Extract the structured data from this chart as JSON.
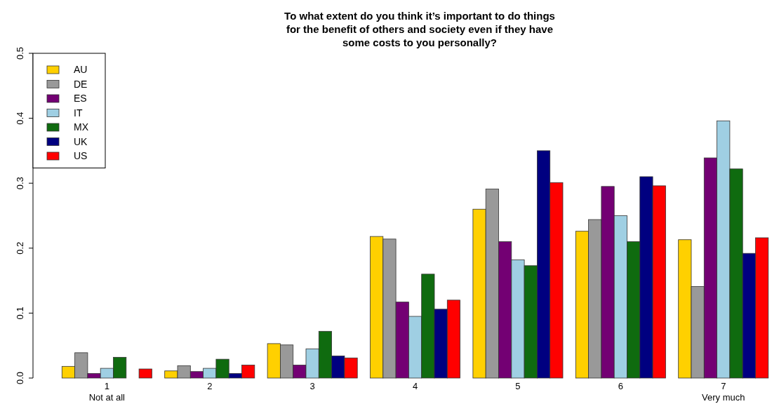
{
  "chart_data": {
    "type": "bar",
    "title": "To what extent do you think it’s important to do things\nfor the benefit of others and society even if they have\nsome costs to you personally?",
    "categories": [
      "1\nNot at all",
      "2",
      "3",
      "4",
      "5",
      "6",
      "7\nVery much"
    ],
    "series": [
      {
        "name": "AU",
        "color": "#ffd000",
        "values": [
          0.018,
          0.011,
          0.053,
          0.218,
          0.26,
          0.226,
          0.213
        ]
      },
      {
        "name": "DE",
        "color": "#999999",
        "values": [
          0.039,
          0.019,
          0.051,
          0.214,
          0.291,
          0.244,
          0.141
        ]
      },
      {
        "name": "ES",
        "color": "#730073",
        "values": [
          0.007,
          0.01,
          0.02,
          0.117,
          0.21,
          0.295,
          0.339
        ]
      },
      {
        "name": "IT",
        "color": "#9fcfe3",
        "values": [
          0.015,
          0.015,
          0.045,
          0.095,
          0.182,
          0.25,
          0.396
        ]
      },
      {
        "name": "MX",
        "color": "#0f6b0f",
        "values": [
          0.032,
          0.029,
          0.072,
          0.16,
          0.173,
          0.21,
          0.322
        ]
      },
      {
        "name": "UK",
        "color": "#000080",
        "values": [
          0,
          0.007,
          0.034,
          0.106,
          0.35,
          0.31,
          0.192
        ]
      },
      {
        "name": "US",
        "color": "#ff0000",
        "values": [
          0.014,
          0.02,
          0.031,
          0.12,
          0.301,
          0.296,
          0.216
        ]
      }
    ],
    "ylim": [
      0,
      0.5
    ],
    "yticks": [
      {
        "value": 0,
        "label": "0.0"
      },
      {
        "value": 0.1,
        "label": "0.1"
      },
      {
        "value": 0.2,
        "label": "0.2"
      },
      {
        "value": 0.3,
        "label": "0.3"
      },
      {
        "value": 0.4,
        "label": "0.4"
      },
      {
        "value": 0.5,
        "label": "0.5"
      }
    ],
    "legend": "top left",
    "grid": false
  }
}
